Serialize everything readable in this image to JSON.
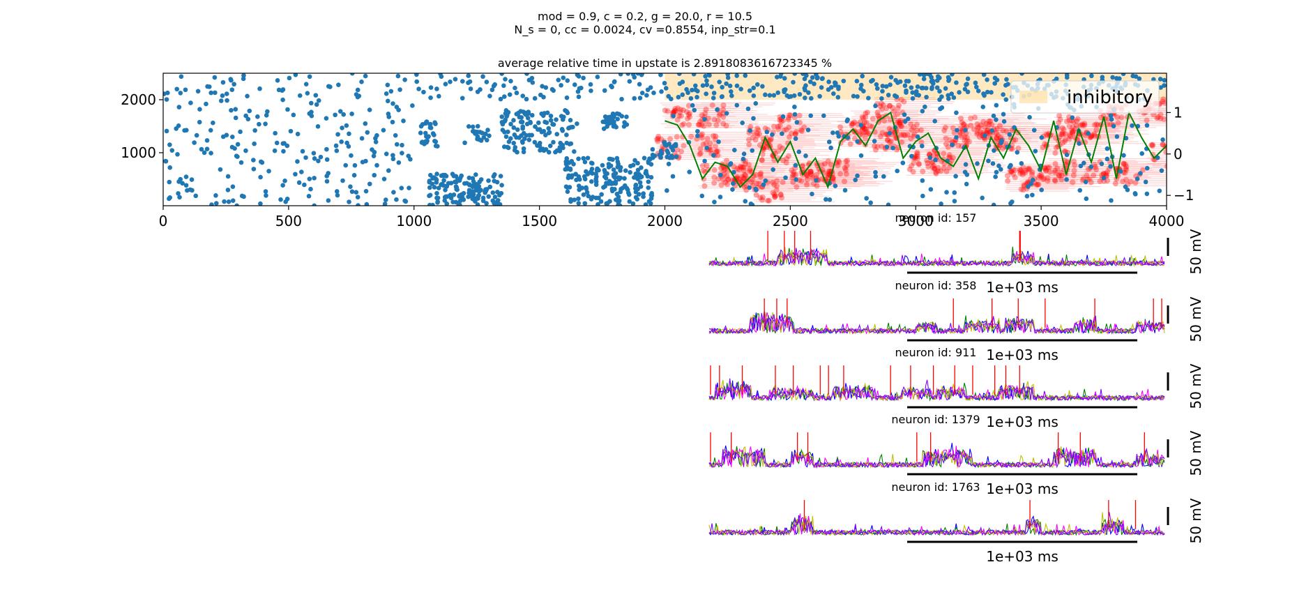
{
  "suptitle": {
    "line1": "mod = 0.9, c = 0.2, g = 20.0, r = 10.5",
    "line2": "N_s = 0, cc = 0.0024, cv =0.8554, inp_str=0.1"
  },
  "colors": {
    "raster": "#1f77b4",
    "upstate_shade": "#ffdb99",
    "rate_line": "#008000",
    "upstate_marker": "#ff0000",
    "trace_colors": [
      "#0000ff",
      "#008000",
      "#ff00ff",
      "#bfbf00",
      "#7f00ff"
    ],
    "spike": "#ff0000",
    "scalebar": "#000000"
  },
  "chart_data": [
    {
      "type": "scatter",
      "title": "average relative time in upstate is 2.8918083616723345 %",
      "xlim": [
        0,
        4000
      ],
      "ylim": [
        0,
        2500
      ],
      "xticks": [
        "0",
        "500",
        "1000",
        "1500",
        "2000",
        "2500",
        "3000",
        "3500",
        "4000"
      ],
      "xtick_values": [
        0,
        500,
        1000,
        1500,
        2000,
        2500,
        3000,
        3500,
        4000
      ],
      "yticks": [
        "1000",
        "2000"
      ],
      "ytick_values": [
        1000,
        2000
      ],
      "right_axis": {
        "ylim": [
          -1.25,
          1.95
        ],
        "yticks": [
          "−1",
          "0",
          "1"
        ],
        "ytick_values": [
          -1,
          0,
          1
        ]
      },
      "legend": {
        "entries": [
          "inhibitory"
        ],
        "placement": "upper right"
      },
      "shaded_region": {
        "x": [
          2000,
          4000
        ],
        "y": [
          2000,
          2500
        ],
        "label": "inhibitory"
      },
      "random_seed": 7,
      "spike_clusters": [
        {
          "x": [
            0,
            1000
          ],
          "y": [
            0,
            2500
          ],
          "n": 260
        },
        {
          "x": [
            1000,
            2000
          ],
          "y": [
            2000,
            2500
          ],
          "n": 90
        },
        {
          "x": [
            1020,
            1100
          ],
          "y": [
            1100,
            1600
          ],
          "n": 30
        },
        {
          "x": [
            1060,
            1350
          ],
          "y": [
            0,
            600
          ],
          "n": 140
        },
        {
          "x": [
            1200,
            1300
          ],
          "y": [
            1150,
            1500
          ],
          "n": 20
        },
        {
          "x": [
            1350,
            1650
          ],
          "y": [
            1000,
            1800
          ],
          "n": 120
        },
        {
          "x": [
            1600,
            1950
          ],
          "y": [
            0,
            900
          ],
          "n": 180
        },
        {
          "x": [
            1750,
            1850
          ],
          "y": [
            1450,
            1750
          ],
          "n": 30
        },
        {
          "x": [
            1950,
            2050
          ],
          "y": [
            900,
            1200
          ],
          "n": 25
        },
        {
          "x": [
            2000,
            4000
          ],
          "y": [
            2000,
            2500
          ],
          "n": 260
        },
        {
          "x": [
            2000,
            4000
          ],
          "y": [
            0,
            1950
          ],
          "n": 230
        }
      ],
      "upstate_events": [
        {
          "x": 2050,
          "y": 1700
        },
        {
          "x": 2190,
          "y": 1700
        },
        {
          "x": 2020,
          "y": 1100
        },
        {
          "x": 2160,
          "y": 1150
        },
        {
          "x": 2200,
          "y": 560
        },
        {
          "x": 2280,
          "y": 650
        },
        {
          "x": 2380,
          "y": 1300
        },
        {
          "x": 2440,
          "y": 1000
        },
        {
          "x": 2500,
          "y": 1500
        },
        {
          "x": 2560,
          "y": 550
        },
        {
          "x": 2620,
          "y": 600
        },
        {
          "x": 2680,
          "y": 650
        },
        {
          "x": 2420,
          "y": 300
        },
        {
          "x": 2750,
          "y": 1350
        },
        {
          "x": 2800,
          "y": 1550
        },
        {
          "x": 2880,
          "y": 1250
        },
        {
          "x": 2900,
          "y": 1800
        },
        {
          "x": 2970,
          "y": 1400
        },
        {
          "x": 3030,
          "y": 800
        },
        {
          "x": 3100,
          "y": 850
        },
        {
          "x": 3160,
          "y": 1300
        },
        {
          "x": 3230,
          "y": 1500
        },
        {
          "x": 3300,
          "y": 1400
        },
        {
          "x": 3360,
          "y": 1250
        },
        {
          "x": 3420,
          "y": 500
        },
        {
          "x": 3480,
          "y": 550
        },
        {
          "x": 3560,
          "y": 1200
        },
        {
          "x": 3620,
          "y": 1500
        },
        {
          "x": 3680,
          "y": 1400
        },
        {
          "x": 3720,
          "y": 650
        },
        {
          "x": 3790,
          "y": 1700
        },
        {
          "x": 3850,
          "y": 600
        },
        {
          "x": 3940,
          "y": 1800
        },
        {
          "x": 3990,
          "y": 950
        },
        {
          "x": 3580,
          "y": 650
        },
        {
          "x": 2330,
          "y": 500
        }
      ],
      "rate_line": {
        "x": [
          2000,
          2050,
          2100,
          2150,
          2200,
          2250,
          2300,
          2350,
          2400,
          2450,
          2500,
          2550,
          2600,
          2650,
          2700,
          2750,
          2800,
          2850,
          2900,
          2950,
          3000,
          3050,
          3100,
          3150,
          3200,
          3250,
          3300,
          3350,
          3400,
          3450,
          3500,
          3550,
          3600,
          3650,
          3700,
          3750,
          3800,
          3850,
          3900,
          3950,
          4000
        ],
        "y": [
          0.8,
          0.7,
          0.2,
          -0.6,
          -0.2,
          -0.3,
          -0.8,
          -0.5,
          0.4,
          -0.2,
          0.3,
          -0.5,
          -0.1,
          -0.8,
          0.3,
          0.6,
          0.2,
          0.8,
          1.0,
          -0.1,
          0.3,
          0.5,
          -0.1,
          -0.3,
          0.2,
          -0.6,
          0.4,
          -0.1,
          0.6,
          0.2,
          -0.4,
          0.8,
          -0.5,
          0.6,
          -0.2,
          0.9,
          -0.6,
          1.0,
          0.4,
          -0.1,
          0.2
        ]
      }
    },
    {
      "type": "line",
      "title": "neuron id: 157",
      "ylabel": "50 mV",
      "scale_x_label": "1e+03 ms",
      "traces": 5,
      "spike_x": [
        85,
        109,
        124,
        147,
        450,
        451
      ],
      "bursts": [
        [
          100,
          170,
          0.45
        ],
        [
          440,
          470,
          0.35
        ]
      ],
      "xlim": [
        0,
        660
      ]
    },
    {
      "type": "line",
      "title": "neuron id: 358",
      "ylabel": "50 mV",
      "scale_x_label": "1e+03 ms",
      "traces": 5,
      "spike_x": [
        80,
        98,
        113,
        354,
        410,
        448,
        487,
        559,
        644,
        656
      ],
      "bursts": [
        [
          60,
          120,
          0.6
        ],
        [
          300,
          330,
          0.25
        ],
        [
          370,
          420,
          0.35
        ],
        [
          430,
          470,
          0.45
        ],
        [
          530,
          560,
          0.4
        ],
        [
          620,
          660,
          0.3
        ]
      ],
      "xlim": [
        0,
        660
      ]
    },
    {
      "type": "line",
      "title": "neuron id: 911",
      "ylabel": "50 mV",
      "scale_x_label": "1e+03 ms",
      "traces": 5,
      "spike_x": [
        2,
        15,
        48,
        96,
        122,
        161,
        173,
        195,
        263,
        292,
        325,
        356,
        382,
        414,
        430,
        450
      ],
      "bursts": [
        [
          10,
          60,
          0.55
        ],
        [
          90,
          150,
          0.3
        ],
        [
          180,
          240,
          0.4
        ],
        [
          280,
          320,
          0.35
        ],
        [
          330,
          370,
          0.35
        ],
        [
          420,
          470,
          0.45
        ]
      ],
      "xlim": [
        0,
        660
      ]
    },
    {
      "type": "line",
      "title": "neuron id: 1379",
      "ylabel": "50 mV",
      "scale_x_label": "1e+03 ms",
      "traces": 5,
      "spike_x": [
        2,
        32,
        128,
        143,
        301,
        321,
        506,
        538,
        631
      ],
      "bursts": [
        [
          20,
          80,
          0.6
        ],
        [
          120,
          150,
          0.45
        ],
        [
          310,
          380,
          0.5
        ],
        [
          500,
          560,
          0.55
        ],
        [
          620,
          660,
          0.35
        ]
      ],
      "xlim": [
        0,
        660
      ]
    },
    {
      "type": "line",
      "title": "neuron id: 1763",
      "ylabel": "50 mV",
      "scale_x_label": "1e+03 ms",
      "traces": 5,
      "spike_x": [
        138,
        465,
        579,
        618
      ],
      "bursts": [
        [
          120,
          150,
          0.55
        ],
        [
          460,
          480,
          0.45
        ],
        [
          570,
          600,
          0.5
        ]
      ],
      "xlim": [
        0,
        660
      ]
    }
  ]
}
